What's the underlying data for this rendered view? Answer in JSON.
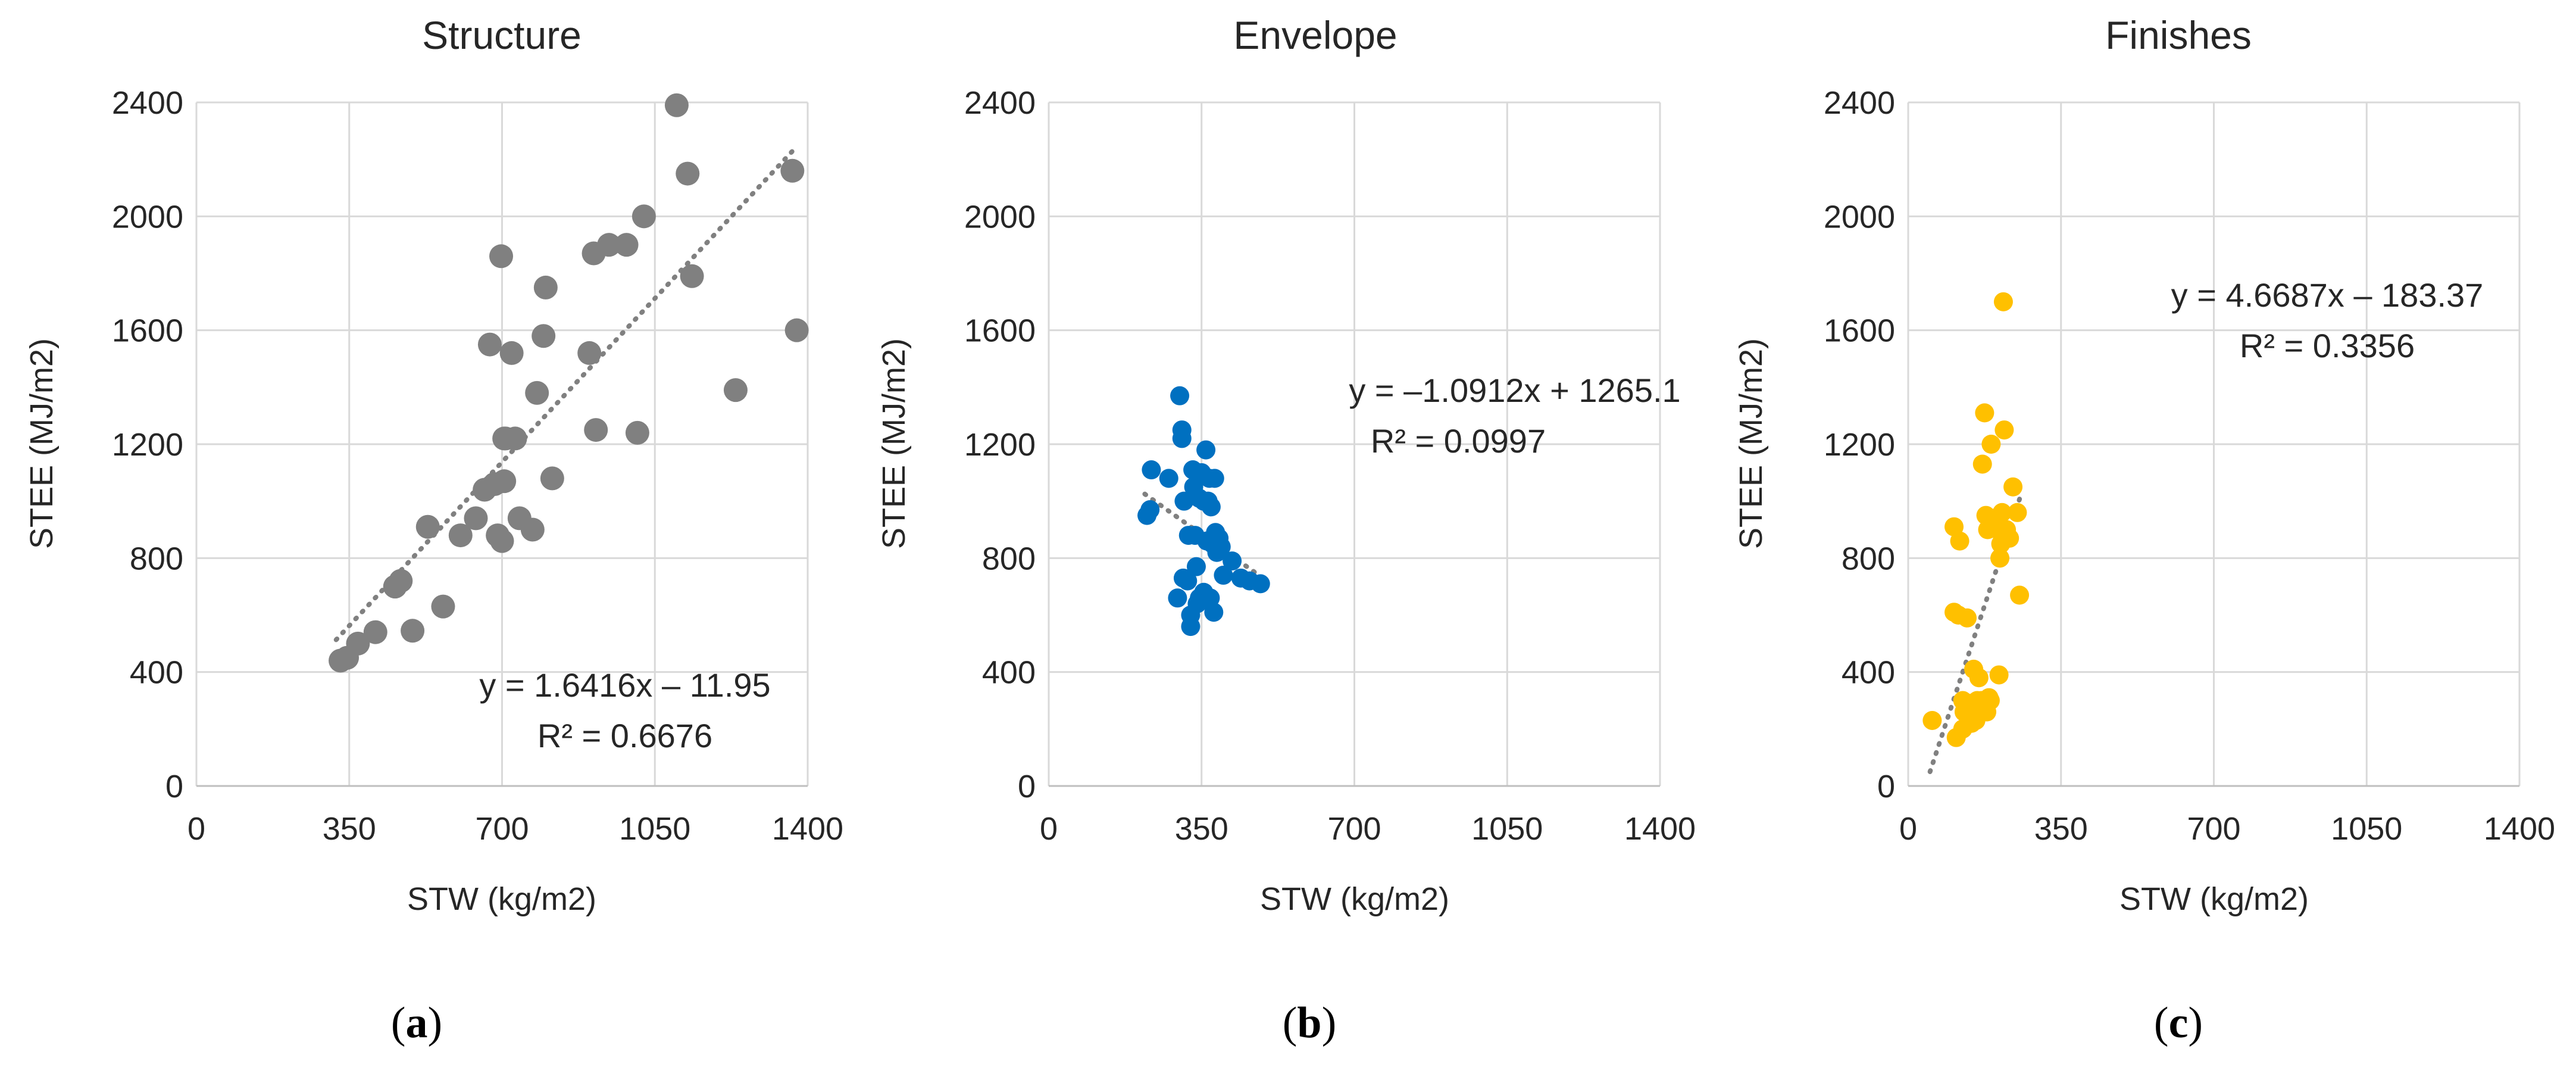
{
  "chart_data": [
    {
      "type": "scatter",
      "title": "Structure",
      "xlabel": "STW (kg/m2)",
      "ylabel": "STEE (MJ/m2)",
      "xlim": [
        0,
        1400
      ],
      "ylim": [
        0,
        2400
      ],
      "xticks": [
        "0",
        "350",
        "700",
        "1050",
        "1400"
      ],
      "yticks": [
        "0",
        "400",
        "800",
        "1200",
        "1600",
        "2000",
        "2400"
      ],
      "grid": true,
      "color": "#808080",
      "x": [
        330,
        345,
        370,
        410,
        455,
        468,
        495,
        530,
        565,
        605,
        640,
        660,
        672,
        683,
        690,
        698,
        700,
        705,
        705,
        708,
        722,
        730,
        740,
        770,
        780,
        795,
        800,
        815,
        900,
        910,
        915,
        945,
        985,
        1010,
        1025,
        1100,
        1125,
        1135,
        1235,
        1365,
        1375
      ],
      "y": [
        440,
        450,
        500,
        540,
        700,
        720,
        545,
        910,
        630,
        880,
        940,
        1040,
        1550,
        1060,
        880,
        1860,
        860,
        1220,
        1070,
        1220,
        1520,
        1220,
        940,
        900,
        1380,
        1580,
        1750,
        1080,
        1520,
        1870,
        1250,
        1900,
        1900,
        1240,
        2000,
        2390,
        2150,
        1790,
        1390,
        2160,
        1600
      ],
      "trendline": {
        "slope": 1.6416,
        "intercept": -11.95,
        "x_range": [
          320,
          1375
        ]
      },
      "equation": "y = 1.6416x – 11.95",
      "r2_label": "R² = 0.6676",
      "caption": "(a)",
      "caption_letter": "a"
    },
    {
      "type": "scatter",
      "title": "Envelope",
      "xlabel": "STW (kg/m2)",
      "ylabel": "STEE (MJ/m2)",
      "xlim": [
        0,
        1400
      ],
      "ylim": [
        0,
        2400
      ],
      "xticks": [
        "0",
        "350",
        "700",
        "1050",
        "1400"
      ],
      "yticks": [
        "0",
        "400",
        "800",
        "1200",
        "1600",
        "2000",
        "2400"
      ],
      "grid": true,
      "color": "#0070C0",
      "x": [
        225,
        232,
        235,
        275,
        295,
        300,
        305,
        305,
        308,
        310,
        318,
        320,
        325,
        325,
        330,
        332,
        335,
        338,
        340,
        345,
        345,
        350,
        355,
        355,
        360,
        362,
        365,
        368,
        370,
        372,
        375,
        378,
        380,
        382,
        385,
        390,
        395,
        400,
        420,
        440,
        460,
        485
      ],
      "y": [
        950,
        970,
        1110,
        1080,
        660,
        1370,
        1250,
        1220,
        730,
        1000,
        720,
        880,
        560,
        600,
        1110,
        1050,
        880,
        770,
        640,
        1010,
        660,
        1100,
        1000,
        680,
        1180,
        860,
        1000,
        1080,
        660,
        980,
        850,
        610,
        1080,
        890,
        820,
        870,
        840,
        740,
        790,
        730,
        720,
        710
      ],
      "trendline": {
        "slope": -1.0912,
        "intercept": 1265.1,
        "x_range": [
          220,
          490
        ]
      },
      "equation": "y = –1.0912x + 1265.1",
      "r2_label": "R² = 0.0997",
      "caption": "(b)",
      "caption_letter": "b"
    },
    {
      "type": "scatter",
      "title": "Finishes",
      "xlabel": "STW (kg/m2)",
      "ylabel": "STEE (MJ/m2)",
      "xlim": [
        0,
        1400
      ],
      "ylim": [
        0,
        2400
      ],
      "xticks": [
        "0",
        "350",
        "700",
        "1050",
        "1400"
      ],
      "yticks": [
        "0",
        "400",
        "800",
        "1200",
        "1600",
        "2000",
        "2400"
      ],
      "grid": true,
      "color": "#FFC000",
      "x": [
        55,
        105,
        105,
        110,
        115,
        118,
        125,
        125,
        128,
        135,
        140,
        142,
        145,
        150,
        152,
        155,
        158,
        160,
        162,
        165,
        168,
        170,
        175,
        178,
        180,
        182,
        185,
        188,
        190,
        195,
        200,
        205,
        208,
        210,
        212,
        215,
        218,
        220,
        225,
        232,
        240,
        250,
        255
      ],
      "y": [
        230,
        610,
        910,
        170,
        600,
        860,
        200,
        300,
        260,
        590,
        290,
        250,
        220,
        410,
        290,
        230,
        300,
        250,
        380,
        280,
        300,
        1130,
        1310,
        950,
        260,
        900,
        310,
        300,
        1200,
        940,
        920,
        900,
        390,
        800,
        850,
        960,
        1700,
        1250,
        900,
        870,
        1050,
        960,
        670
      ],
      "trendline": {
        "slope": 4.6687,
        "intercept": -183.37,
        "x_range": [
          50,
          260
        ]
      },
      "equation": "y = 4.6687x – 183.37",
      "r2_label": "R² = 0.3356",
      "caption": "(c)",
      "caption_letter": "c"
    }
  ]
}
